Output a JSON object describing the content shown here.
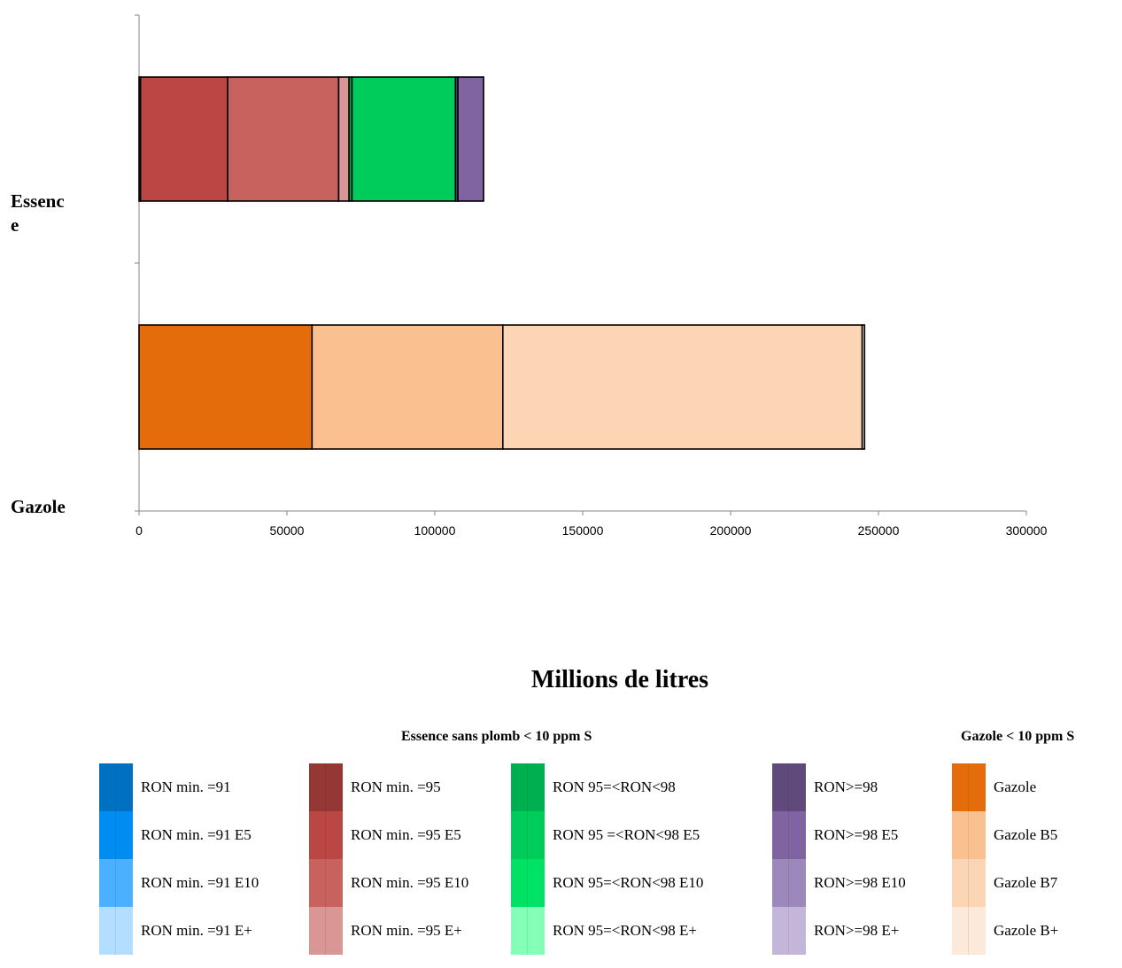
{
  "chart_data": {
    "type": "bar",
    "orientation": "horizontal",
    "stacked": true,
    "categories": [
      "Essence",
      "Gazole"
    ],
    "title": "",
    "xlabel": "Millions de litres",
    "ylabel": "",
    "xlim": [
      0,
      300000
    ],
    "xticks": [
      0,
      50000,
      100000,
      150000,
      200000,
      250000,
      300000
    ],
    "series": [
      {
        "name": "RON min. =91",
        "color": "#0070C0",
        "values": [
          0,
          0
        ]
      },
      {
        "name": "RON min. =91 E5",
        "color": "#008CF0",
        "values": [
          0,
          0
        ]
      },
      {
        "name": "RON min. =91 E10",
        "color": "#4BB0FF",
        "values": [
          0,
          0
        ]
      },
      {
        "name": "RON min. =91 E+",
        "color": "#B4DEFF",
        "values": [
          0,
          0
        ]
      },
      {
        "name": "RON min. =95",
        "color": "#953735",
        "values": [
          500,
          0
        ]
      },
      {
        "name": "RON min. =95 E5",
        "color": "#BA4744",
        "values": [
          29500,
          0
        ]
      },
      {
        "name": "RON min. =95 E10",
        "color": "#C8625F",
        "values": [
          37500,
          0
        ]
      },
      {
        "name": "RON min. =95 E+",
        "color": "#D99694",
        "values": [
          3500,
          0
        ]
      },
      {
        "name": "RON 95=<RON<98",
        "color": "#00B050",
        "values": [
          1000,
          0
        ]
      },
      {
        "name": "RON 95 =<RON<98 E5",
        "color": "#00CC5C",
        "values": [
          35000,
          0
        ]
      },
      {
        "name": "RON 95=<RON<98 E10",
        "color": "#00E264",
        "values": [
          0,
          0
        ]
      },
      {
        "name": "RON 95=<RON<98 E+",
        "color": "#84FFB8",
        "values": [
          0,
          0
        ]
      },
      {
        "name": "RON>=98",
        "color": "#604A7B",
        "values": [
          800,
          0
        ]
      },
      {
        "name": "RON>=98 E5",
        "color": "#8064A2",
        "values": [
          8700,
          0
        ]
      },
      {
        "name": "RON>=98 E10",
        "color": "#9D88BC",
        "values": [
          0,
          0
        ]
      },
      {
        "name": "RON>=98 E+",
        "color": "#C3B6D8",
        "values": [
          0,
          0
        ]
      },
      {
        "name": "Gazole",
        "color": "#E46C0A",
        "values": [
          0,
          58500
        ]
      },
      {
        "name": "Gazole B5",
        "color": "#FAC090",
        "values": [
          0,
          64500
        ]
      },
      {
        "name": "Gazole B7",
        "color": "#FCD5B5",
        "values": [
          0,
          121500
        ]
      },
      {
        "name": "Gazole B+",
        "color": "#FDE9D9",
        "values": [
          0,
          800
        ]
      }
    ],
    "legend_groups": [
      {
        "title": "Essence sans plomb < 10 ppm S",
        "series_range": [
          0,
          15
        ]
      },
      {
        "title": "Gazole < 10 ppm S",
        "series_range": [
          16,
          19
        ]
      }
    ],
    "grid": false,
    "legend_position": "bottom"
  }
}
